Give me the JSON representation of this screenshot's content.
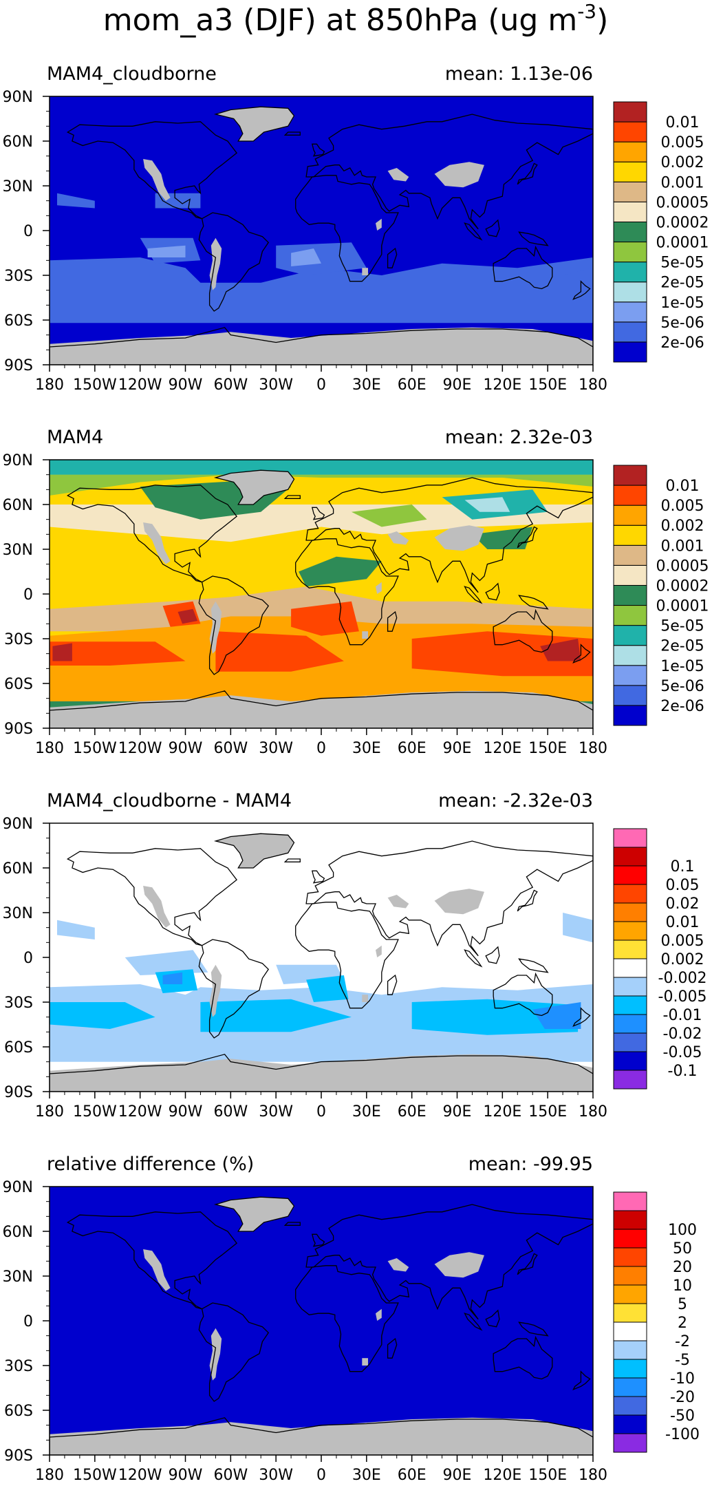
{
  "figure": {
    "title_main": "mom_a3 (DJF) at 850hPa (ug m",
    "title_sup": "-3",
    "title_close": ")"
  },
  "colors": {
    "land_missing": "#bebebe",
    "coast": "#000000"
  },
  "axes": {
    "lon_labels": [
      "180",
      "150W",
      "120W",
      "90W",
      "60W",
      "30W",
      "0",
      "30E",
      "60E",
      "90E",
      "120E",
      "150E",
      "180"
    ],
    "lat_labels": [
      "90N",
      "60N",
      "30N",
      "0",
      "30S",
      "60S",
      "90S"
    ]
  },
  "panels": [
    {
      "id": "cloudborne",
      "title": "MAM4_cloudborne",
      "mean": "mean: 1.13e-06",
      "palette": "conc",
      "fill": "#0000cd",
      "patches": "cloudborne"
    },
    {
      "id": "mam4",
      "title": "MAM4",
      "mean": "mean: 2.32e-03",
      "palette": "conc",
      "fill": "#ffd700",
      "patches": "mam4"
    },
    {
      "id": "diff",
      "title": "MAM4_cloudborne - MAM4",
      "mean": "mean: -2.32e-03",
      "palette": "diff",
      "fill": "#ffffff",
      "patches": "diff"
    },
    {
      "id": "reldiff",
      "title": "relative difference (%)",
      "mean": "mean: -99.95",
      "palette": "rel",
      "fill": "#0000cd",
      "patches": "reldiff"
    }
  ],
  "palettes": {
    "conc": {
      "colors": [
        "#0000cd",
        "#4169e1",
        "#7b9ef0",
        "#aedfe6",
        "#20b2aa",
        "#8fc63e",
        "#2e8b57",
        "#f5e6c4",
        "#deb887",
        "#ffd700",
        "#ffa500",
        "#ff4500",
        "#b22222"
      ],
      "labels": [
        "2e-06",
        "5e-06",
        "1e-05",
        "2e-05",
        "5e-05",
        "0.0001",
        "0.0002",
        "0.0005",
        "0.001",
        "0.002",
        "0.005",
        "0.01"
      ]
    },
    "diff": {
      "colors": [
        "#8a2be2",
        "#0000cd",
        "#4169e1",
        "#1e90ff",
        "#00bfff",
        "#a5d0fa",
        "#ffffff",
        "#ffe135",
        "#ffa500",
        "#ff7f00",
        "#ff4500",
        "#ff0000",
        "#cd0000",
        "#ff69b4"
      ],
      "labels": [
        "-0.1",
        "-0.05",
        "-0.02",
        "-0.01",
        "-0.005",
        "-0.002",
        "0.002",
        "0.005",
        "0.01",
        "0.02",
        "0.05",
        "0.1"
      ]
    },
    "rel": {
      "colors": [
        "#8a2be2",
        "#0000cd",
        "#4169e1",
        "#1e90ff",
        "#00bfff",
        "#a5d0fa",
        "#ffffff",
        "#ffe135",
        "#ffa500",
        "#ff7f00",
        "#ff4500",
        "#ff0000",
        "#cd0000",
        "#ff69b4"
      ],
      "labels": [
        "-100",
        "-50",
        "-20",
        "-10",
        "-5",
        "-2",
        "2",
        "5",
        "10",
        "20",
        "50",
        "100"
      ]
    }
  }
}
